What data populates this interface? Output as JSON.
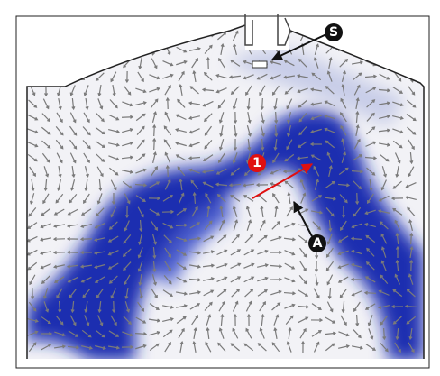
{
  "markers": {
    "s": "S",
    "one": "1",
    "a": "A"
  }
}
